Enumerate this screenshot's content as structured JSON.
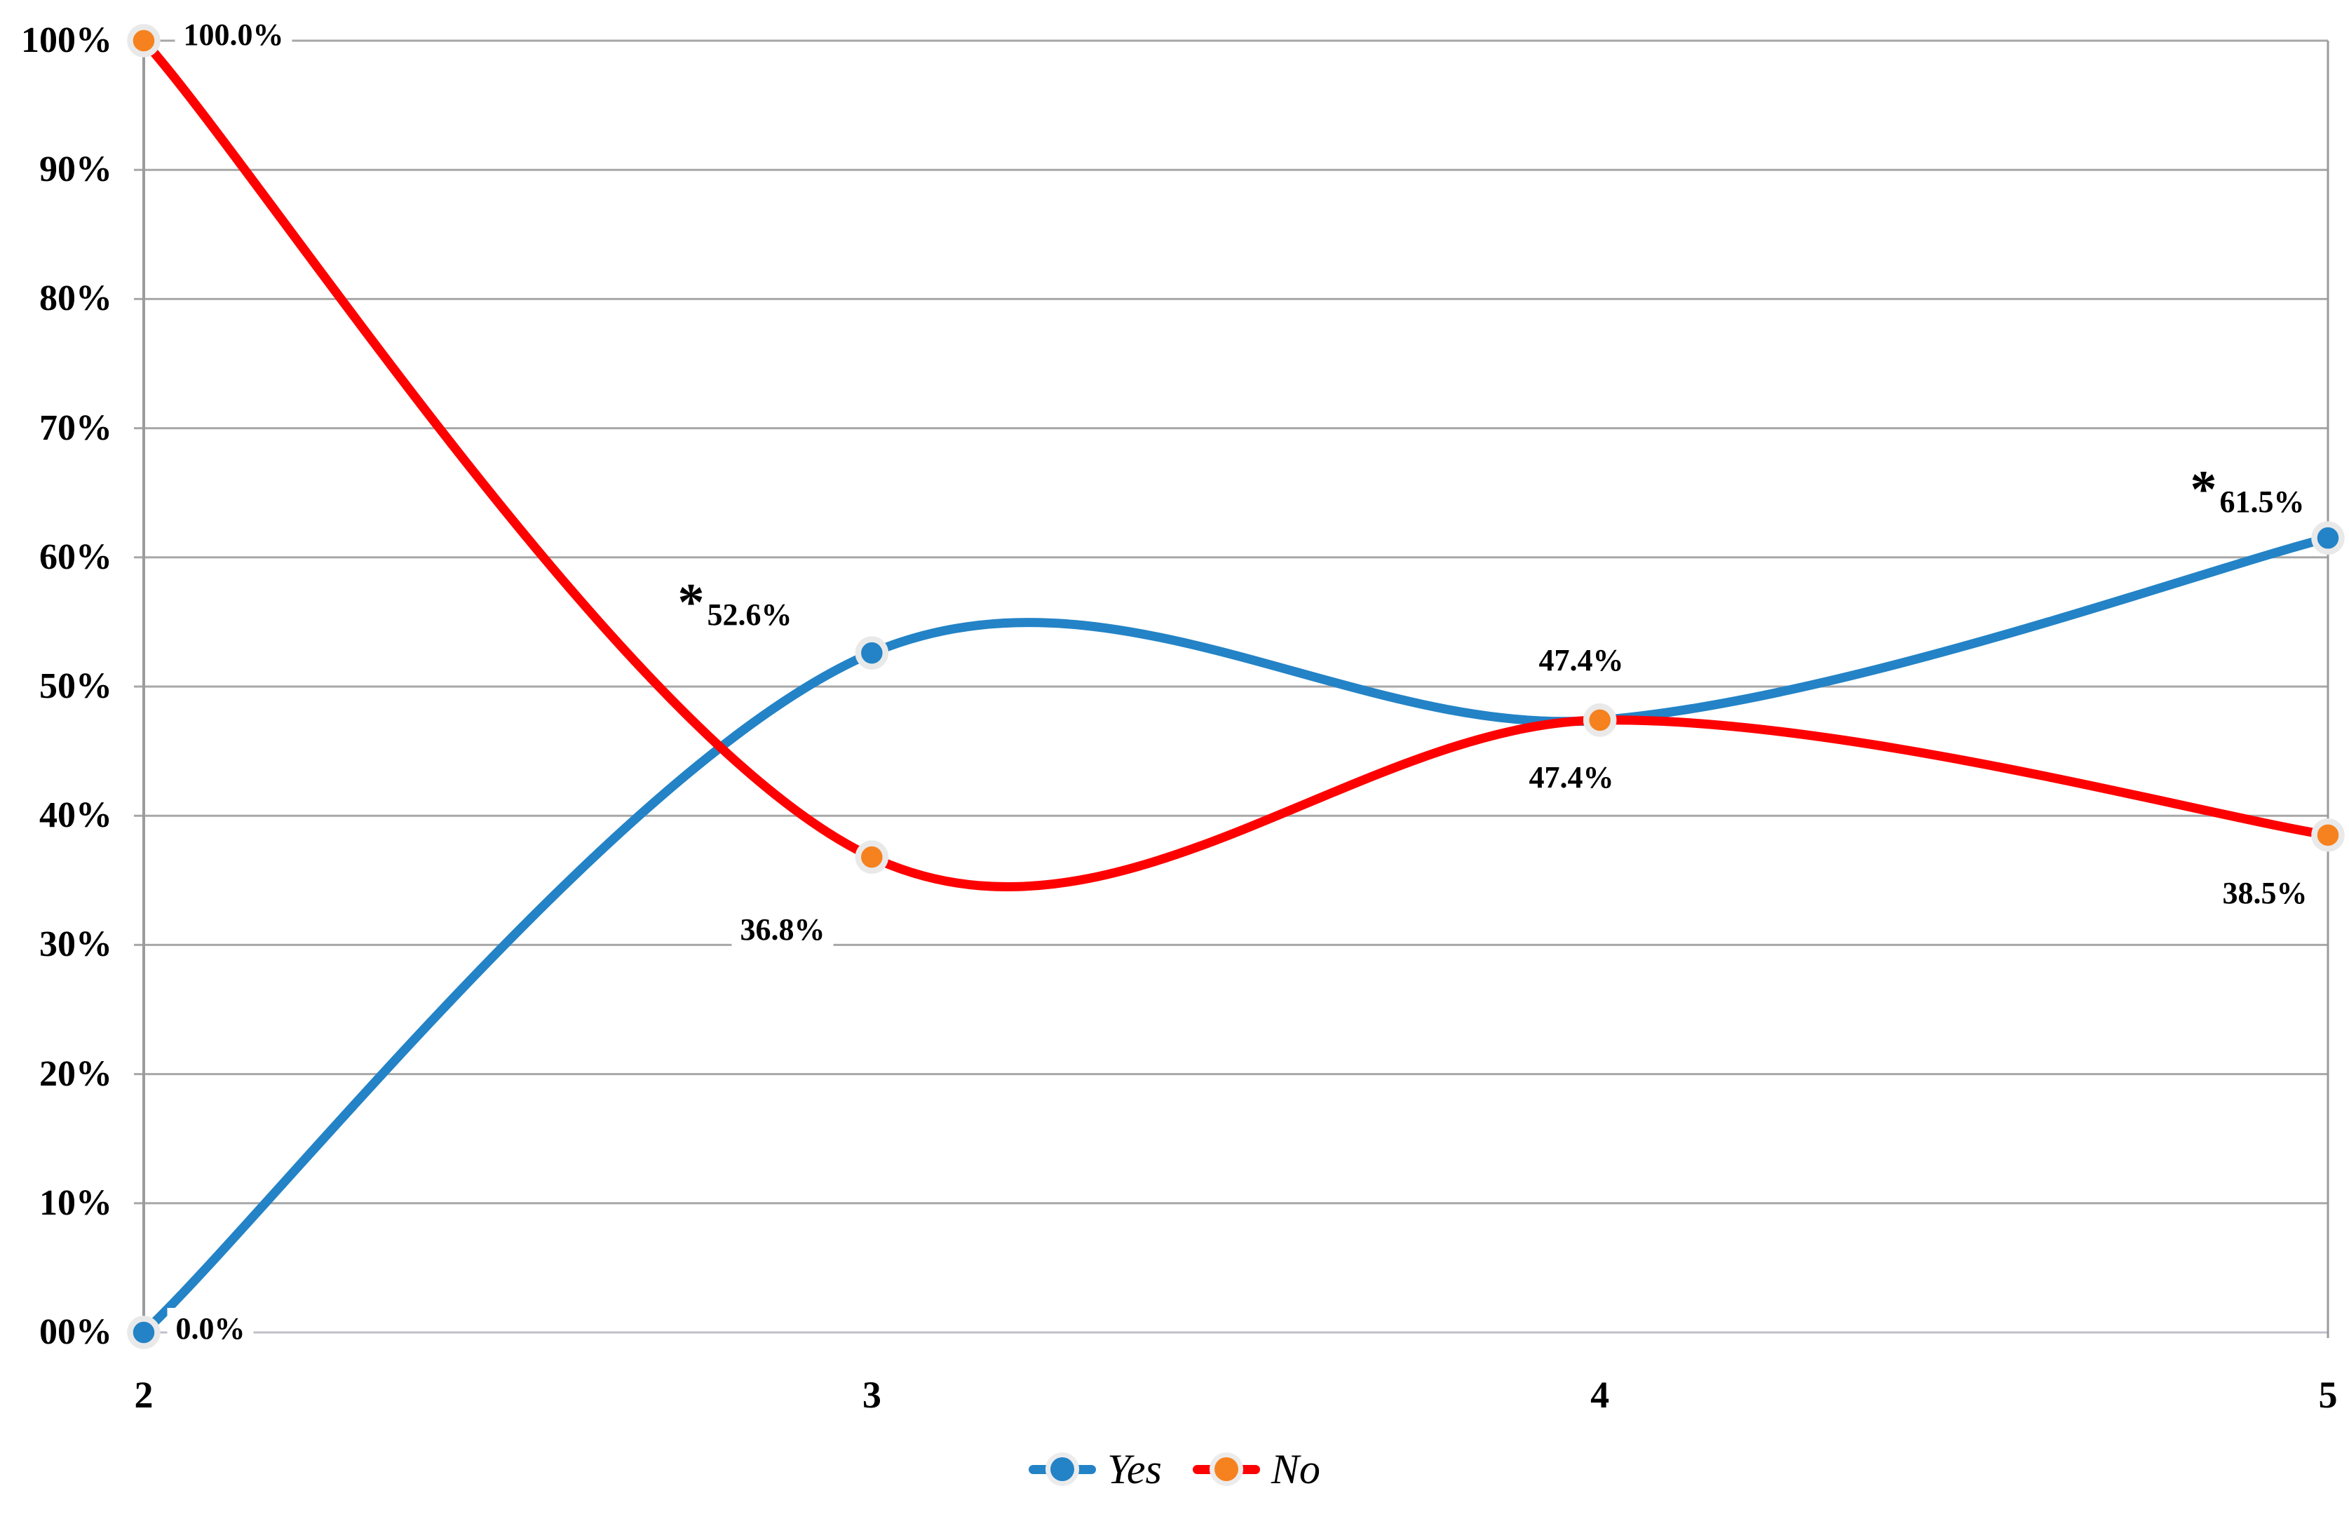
{
  "chart_data": {
    "type": "line",
    "smooth": true,
    "x": [
      2,
      3,
      4,
      5
    ],
    "xlim": [
      2,
      5
    ],
    "ylim": [
      0,
      100
    ],
    "x_tick_labels": [
      "2",
      "3",
      "4",
      "5"
    ],
    "y_tick_labels": [
      "00%",
      "10%",
      "20%",
      "30%",
      "40%",
      "50%",
      "60%",
      "70%",
      "80%",
      "90%",
      "100%"
    ],
    "grid": "horizontal",
    "legend_position": "bottom-center",
    "series": [
      {
        "name": "Yes",
        "color": "#2383C6",
        "marker_color": "#2383C6",
        "values": [
          0.0,
          52.6,
          47.4,
          61.5
        ],
        "point_labels": [
          "0.0%",
          "*52.6%",
          "47.4%",
          "*61.5%"
        ]
      },
      {
        "name": "No",
        "color": "#FE0000",
        "marker_color": "#F6821F",
        "values": [
          100.0,
          36.8,
          47.4,
          38.5
        ],
        "point_labels": [
          "100.0%",
          "36.8%",
          "47.4%",
          "38.5%"
        ]
      }
    ],
    "colors": {
      "gridline": "#A7A7A7",
      "baseline": "#BFBFC9",
      "axis": "#9B9B9B",
      "marker_halo": "#E9E9E9",
      "label_text": "#000000",
      "background": "#FFFFFF"
    }
  }
}
